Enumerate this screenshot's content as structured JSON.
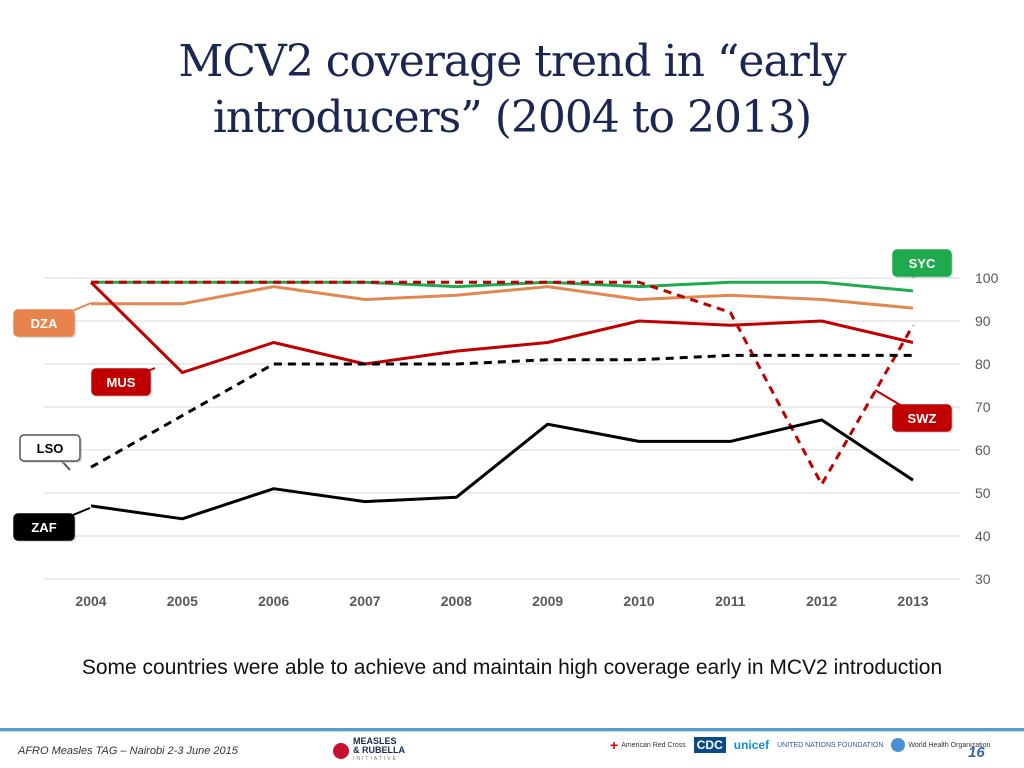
{
  "slide": {
    "title_line1": "MCV2 coverage trend in “early",
    "title_line2": "introducers” (2004 to 2013)",
    "subtitle": "Some countries were able to achieve and maintain high coverage early in MCV2 introduction",
    "footer_text": "AFRO Measles TAG – Nairobi 2-3 June 2015",
    "page_number": "16",
    "logo_main": "MEASLES",
    "logo_sub": "& RUBELLA",
    "logo_initiative": "INITIATIVE",
    "partners": [
      {
        "name": "American Red Cross",
        "icon": "red-cross-icon"
      },
      {
        "name": "CDC",
        "icon": "cdc-logo"
      },
      {
        "name": "unicef",
        "icon": "unicef-logo"
      },
      {
        "name": "UNITED NATIONS FOUNDATION",
        "icon": "un-foundation-logo"
      },
      {
        "name": "World Health Organization",
        "icon": "who-logo"
      }
    ]
  },
  "chart_data": {
    "type": "line",
    "x": [
      "2004",
      "2005",
      "2006",
      "2007",
      "2008",
      "2009",
      "2010",
      "2011",
      "2012",
      "2013"
    ],
    "ylim": [
      30,
      100
    ],
    "yticks": [
      30,
      40,
      50,
      60,
      70,
      80,
      90,
      100
    ],
    "grid": true,
    "series": [
      {
        "name": "DZA",
        "color": "#e08850",
        "dashed": false,
        "values": [
          94,
          94,
          98,
          95,
          96,
          98,
          95,
          96,
          95,
          93
        ]
      },
      {
        "name": "SYC",
        "color": "#1faa4f",
        "dashed": false,
        "values": [
          99,
          99,
          99,
          99,
          98,
          99,
          98,
          99,
          99,
          97
        ]
      },
      {
        "name": "MUS",
        "color": "#c00000",
        "dashed": false,
        "values": [
          99,
          78,
          85,
          80,
          83,
          85,
          90,
          89,
          90,
          85
        ]
      },
      {
        "name": "SWZ",
        "color": "#c00000",
        "dashed": true,
        "values": [
          99,
          99,
          99,
          99,
          99,
          99,
          99,
          92,
          52,
          89
        ]
      },
      {
        "name": "LSO",
        "color": "#000000",
        "dashed": true,
        "values": [
          56,
          68,
          80,
          80,
          80,
          81,
          81,
          82,
          82,
          82
        ]
      },
      {
        "name": "ZAF",
        "color": "#000000",
        "dashed": false,
        "values": [
          47,
          44,
          51,
          48,
          49,
          66,
          62,
          62,
          67,
          53
        ]
      }
    ],
    "callouts": [
      {
        "series": "SYC",
        "fill": "#1faa4f",
        "text_color": "#ffffff",
        "border": "#1faa4f",
        "position": "top-right",
        "anchor_index": 9
      },
      {
        "series": "DZA",
        "fill": "#e8834e",
        "text_color": "#ffffff",
        "border": "#e8834e",
        "position": "left",
        "anchor_index": 0
      },
      {
        "series": "MUS",
        "fill": "#c00000",
        "text_color": "#ffffff",
        "border": "#c00000",
        "position": "left",
        "anchor_index": 1
      },
      {
        "series": "SWZ",
        "fill": "#c00000",
        "text_color": "#ffffff",
        "border": "#c00000",
        "position": "right",
        "anchor_index": 9
      },
      {
        "series": "LSO",
        "fill": "#ffffff",
        "text_color": "#000000",
        "border": "#555555",
        "position": "left",
        "anchor_index": 0
      },
      {
        "series": "ZAF",
        "fill": "#000000",
        "text_color": "#ffffff",
        "border": "#000000",
        "position": "left",
        "anchor_index": 0
      }
    ]
  }
}
